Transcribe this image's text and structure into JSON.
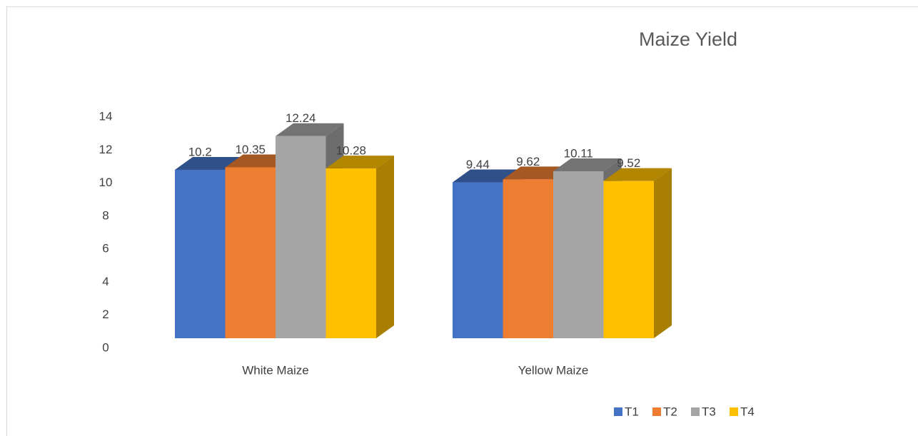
{
  "chart_data": {
    "type": "bar3d",
    "title": "Maize Yield",
    "categories": [
      "White Maize",
      "Yellow Maize"
    ],
    "series": [
      {
        "name": "T1",
        "color": "#4472c4",
        "values": [
          10.2,
          9.44
        ]
      },
      {
        "name": "T2",
        "color": "#ed7d31",
        "values": [
          10.35,
          9.62
        ]
      },
      {
        "name": "T3",
        "color": "#a5a5a5",
        "values": [
          12.24,
          10.11
        ]
      },
      {
        "name": "T4",
        "color": "#ffc000",
        "values": [
          10.28,
          9.52
        ]
      }
    ],
    "ylim": [
      0,
      14
    ],
    "yticks": [
      0,
      2,
      4,
      6,
      8,
      10,
      12,
      14
    ],
    "grid": false,
    "legend": "bottom"
  }
}
